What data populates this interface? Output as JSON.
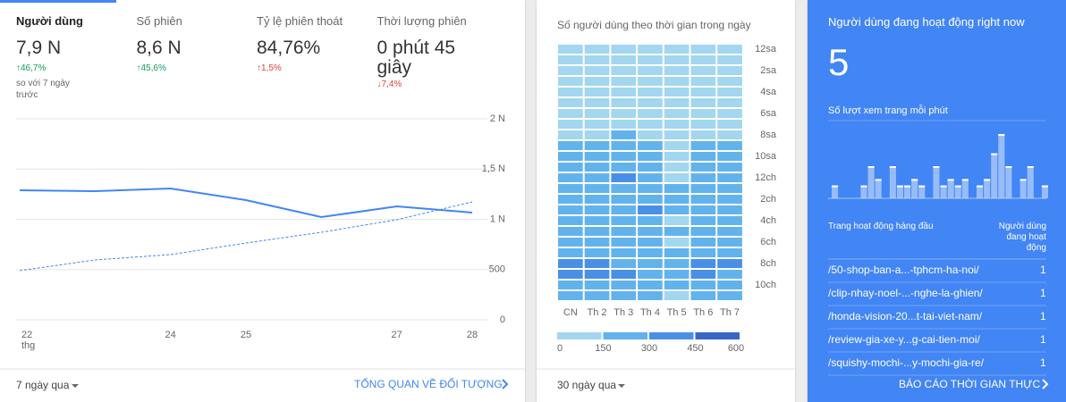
{
  "audience": {
    "tabs": [
      {
        "label": "Người dùng",
        "value": "7,9 N",
        "change": "↑46,7%",
        "change_color": "#0f9d58",
        "note": "so với 7 ngày trước"
      },
      {
        "label": "Số phiên",
        "value": "8,6 N",
        "change": "↑45,6%",
        "change_color": "#0f9d58"
      },
      {
        "label": "Tỷ lệ phiên thoát",
        "value": "84,76%",
        "change": "↑1,5%",
        "change_color": "#db4437"
      },
      {
        "label": "Thời lượng phiên",
        "value": "0 phút 45 giây",
        "change": "↓7,4%",
        "change_color": "#db4437"
      }
    ],
    "chart": {
      "type": "line",
      "categories": [
        "22",
        null,
        "24",
        "25",
        null,
        "27",
        "28"
      ],
      "month_label": "thg",
      "series": [
        {
          "color": "#4285f4",
          "style": "solid",
          "values": [
            1289,
            1280,
            1307,
            1191,
            1022,
            1129,
            1067
          ]
        },
        {
          "color": "#4285f4",
          "style": "dashed",
          "values": [
            489,
            596,
            649,
            764,
            871,
            996,
            1173
          ]
        }
      ],
      "ylim": [
        0,
        2000
      ],
      "yticks": [
        {
          "value": 2000,
          "label": "2 N"
        },
        {
          "value": 1500,
          "label": "1,5 N"
        },
        {
          "value": 1000,
          "label": "1 N"
        },
        500,
        0
      ],
      "grid": true
    },
    "period": "7 ngày qua",
    "link": "TỔNG QUAN VỀ ĐỐI TƯỢNG"
  },
  "heatmap": {
    "type": "heatmap",
    "title": "Số người dùng theo thời gian trong ngày",
    "columns": [
      "CN",
      "Th 2",
      "Th 3",
      "Th 4",
      "Th 5",
      "Th 6",
      "Th 7"
    ],
    "row_labels": [
      "12sa",
      null,
      "2sa",
      null,
      "4sa",
      null,
      "6sa",
      null,
      "8sa",
      null,
      "10sa",
      null,
      "12ch",
      null,
      "2ch",
      null,
      "4ch",
      null,
      "6ch",
      null,
      "8ch",
      null,
      "10ch",
      null
    ],
    "values": [
      [
        75,
        75,
        75,
        75,
        75,
        75,
        75
      ],
      [
        75,
        75,
        75,
        75,
        75,
        75,
        75
      ],
      [
        75,
        75,
        75,
        75,
        75,
        75,
        75
      ],
      [
        75,
        75,
        75,
        75,
        75,
        75,
        75
      ],
      [
        75,
        75,
        75,
        75,
        75,
        75,
        75
      ],
      [
        75,
        75,
        75,
        75,
        75,
        75,
        75
      ],
      [
        75,
        75,
        75,
        75,
        75,
        75,
        75
      ],
      [
        75,
        75,
        75,
        75,
        75,
        75,
        75
      ],
      [
        75,
        75,
        225,
        75,
        75,
        75,
        75
      ],
      [
        225,
        225,
        225,
        225,
        75,
        225,
        225
      ],
      [
        225,
        225,
        225,
        225,
        75,
        225,
        225
      ],
      [
        225,
        225,
        225,
        225,
        75,
        225,
        225
      ],
      [
        225,
        225,
        375,
        225,
        75,
        225,
        225
      ],
      [
        225,
        225,
        225,
        225,
        225,
        225,
        225
      ],
      [
        225,
        225,
        225,
        225,
        225,
        225,
        225
      ],
      [
        225,
        225,
        225,
        375,
        225,
        225,
        225
      ],
      [
        225,
        225,
        225,
        225,
        75,
        225,
        225
      ],
      [
        225,
        225,
        225,
        225,
        225,
        225,
        225
      ],
      [
        225,
        225,
        225,
        225,
        75,
        225,
        225
      ],
      [
        225,
        225,
        225,
        225,
        225,
        225,
        225
      ],
      [
        375,
        375,
        225,
        225,
        225,
        375,
        375
      ],
      [
        375,
        375,
        375,
        225,
        225,
        375,
        225
      ],
      [
        225,
        225,
        225,
        225,
        225,
        225,
        225
      ],
      [
        225,
        225,
        225,
        225,
        75,
        225,
        225
      ]
    ],
    "bins": [
      0,
      150,
      300,
      450,
      600
    ],
    "colors": [
      "#a3d6ef",
      "#62b3ec",
      "#4a8fe6",
      "#3866c8"
    ],
    "period": "30 ngày qua"
  },
  "realtime": {
    "title": "Người dùng đang hoạt động right now",
    "value": "5",
    "chart": {
      "type": "bar",
      "title": "Số lượt xem trang mỗi phút",
      "values": [
        2,
        0,
        0,
        0,
        2,
        5,
        3,
        0,
        5,
        2,
        2,
        3,
        2,
        0,
        5,
        2,
        3,
        2,
        3,
        0,
        2,
        3,
        7,
        10,
        5,
        0,
        3,
        5,
        0,
        2
      ]
    },
    "table": {
      "headers": [
        "Trang hoạt động hàng đầu",
        "Người dùng đang hoạt động"
      ],
      "rows": [
        [
          "/50-shop-ban-a...-tphcm-ha-noi/",
          "1"
        ],
        [
          "/clip-nhay-noel-...-nghe-la-ghien/",
          "1"
        ],
        [
          "/honda-vision-20...t-tai-viet-nam/",
          "1"
        ],
        [
          "/review-gia-xe-y...g-cai-tien-moi/",
          "1"
        ],
        [
          "/squishy-mochi-...y-mochi-gia-re/",
          "1"
        ]
      ]
    },
    "link": "BÁO CÁO THỜI GIAN THỰC"
  }
}
